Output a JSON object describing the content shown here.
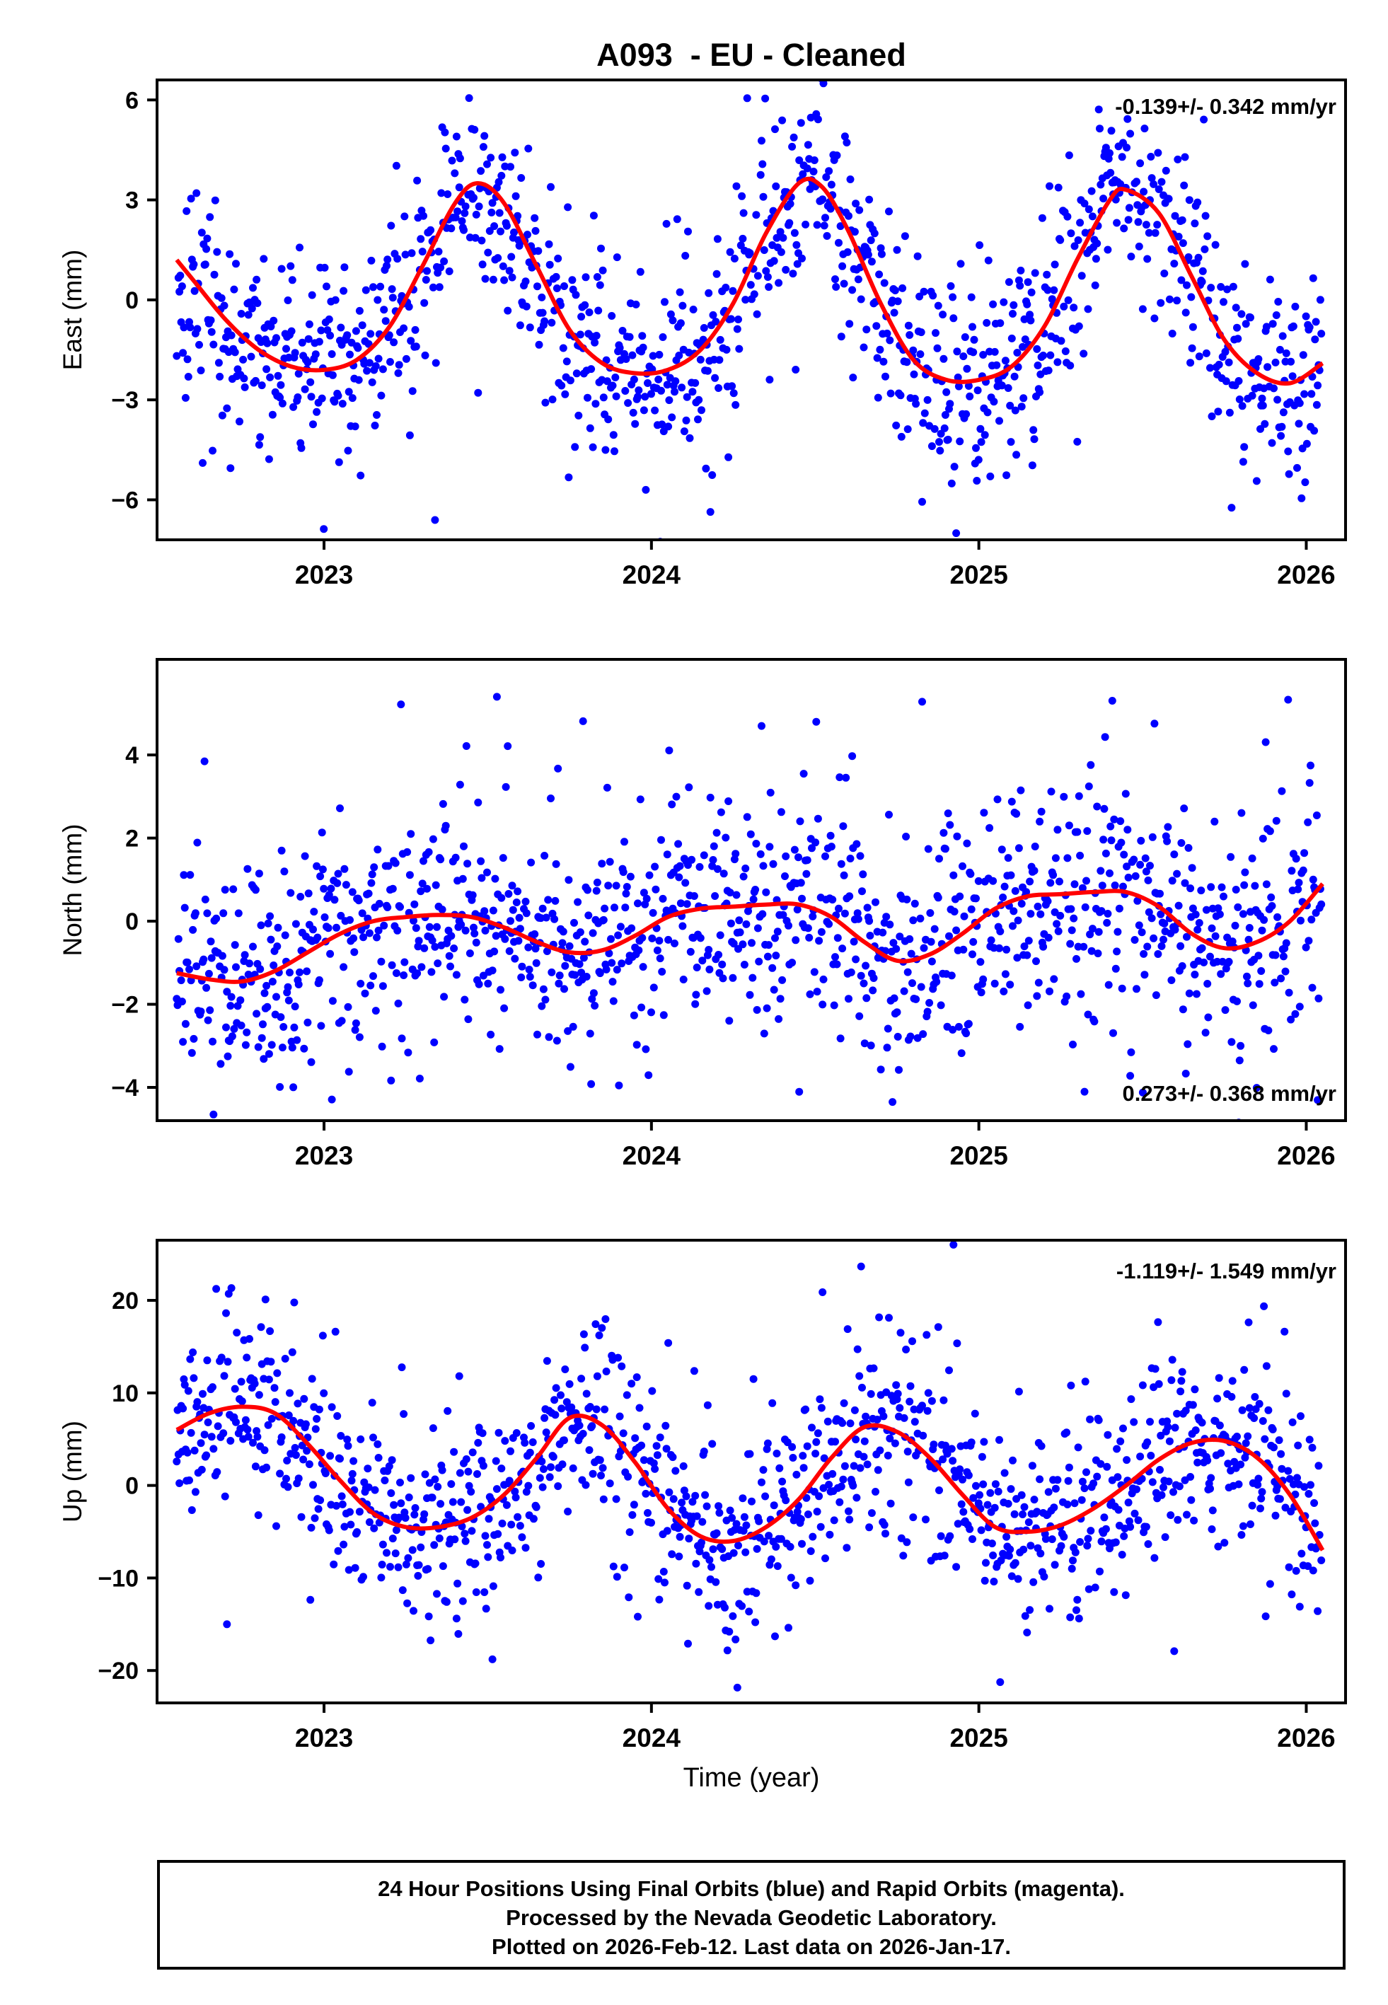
{
  "title": "A093  - EU - Cleaned",
  "chart_data": {
    "type": "scatter",
    "xlabel": "Time (year)",
    "x_ticks": [
      2023,
      2024,
      2025,
      2026
    ],
    "xlim": [
      2022.49,
      2026.12
    ],
    "data_start": 2022.55,
    "data_end": 2026.046,
    "point_color": "#0000ff",
    "curve_color": "#ff0000",
    "frame_color": "#000000",
    "grid": false,
    "legend": "none",
    "scatter_style": {
      "seed": 20260212,
      "gap_frac": 0.05,
      "outlier_frac": 0.12,
      "outlier_scale": 2.2,
      "points_per_year": 365
    },
    "panels": [
      {
        "name": "east",
        "ylabel": "East (mm)",
        "annotation": "-0.139+/- 0.342 mm/yr",
        "annotation_pos": "top-right",
        "ylim": [
          -7.2,
          6.6
        ],
        "yticks": [
          -6,
          -3,
          0,
          3,
          6
        ],
        "noise_sigma": 1.35,
        "curve": [
          [
            2022.55,
            1.2
          ],
          [
            2022.6,
            0.6
          ],
          [
            2022.7,
            -0.6
          ],
          [
            2022.8,
            -1.5
          ],
          [
            2022.9,
            -2.0
          ],
          [
            2023.0,
            -2.1
          ],
          [
            2023.1,
            -1.8
          ],
          [
            2023.2,
            -0.8
          ],
          [
            2023.3,
            1.0
          ],
          [
            2023.4,
            2.9
          ],
          [
            2023.47,
            3.5
          ],
          [
            2023.55,
            2.9
          ],
          [
            2023.65,
            1.0
          ],
          [
            2023.75,
            -0.9
          ],
          [
            2023.85,
            -1.9
          ],
          [
            2023.95,
            -2.2
          ],
          [
            2024.05,
            -2.1
          ],
          [
            2024.15,
            -1.5
          ],
          [
            2024.25,
            -0.1
          ],
          [
            2024.35,
            2.0
          ],
          [
            2024.45,
            3.5
          ],
          [
            2024.52,
            3.4
          ],
          [
            2024.6,
            2.1
          ],
          [
            2024.7,
            -0.1
          ],
          [
            2024.8,
            -1.8
          ],
          [
            2024.9,
            -2.4
          ],
          [
            2025.0,
            -2.4
          ],
          [
            2025.1,
            -2.0
          ],
          [
            2025.2,
            -0.8
          ],
          [
            2025.3,
            1.2
          ],
          [
            2025.4,
            3.0
          ],
          [
            2025.45,
            3.3
          ],
          [
            2025.55,
            2.6
          ],
          [
            2025.65,
            0.7
          ],
          [
            2025.75,
            -1.2
          ],
          [
            2025.85,
            -2.2
          ],
          [
            2025.95,
            -2.5
          ],
          [
            2026.05,
            -1.9
          ]
        ]
      },
      {
        "name": "north",
        "ylabel": "North (mm)",
        "annotation": "0.273+/- 0.368 mm/yr",
        "annotation_pos": "bottom-right",
        "ylim": [
          -4.8,
          6.3
        ],
        "yticks": [
          -4,
          -2,
          0,
          2,
          4
        ],
        "noise_sigma": 1.3,
        "curve": [
          [
            2022.55,
            -1.25
          ],
          [
            2022.65,
            -1.4
          ],
          [
            2022.75,
            -1.45
          ],
          [
            2022.85,
            -1.2
          ],
          [
            2022.95,
            -0.75
          ],
          [
            2023.05,
            -0.3
          ],
          [
            2023.15,
            0.0
          ],
          [
            2023.25,
            0.1
          ],
          [
            2023.35,
            0.15
          ],
          [
            2023.45,
            0.1
          ],
          [
            2023.55,
            -0.15
          ],
          [
            2023.65,
            -0.5
          ],
          [
            2023.75,
            -0.75
          ],
          [
            2023.85,
            -0.7
          ],
          [
            2023.95,
            -0.35
          ],
          [
            2024.05,
            0.1
          ],
          [
            2024.15,
            0.3
          ],
          [
            2024.25,
            0.35
          ],
          [
            2024.35,
            0.4
          ],
          [
            2024.45,
            0.4
          ],
          [
            2024.55,
            0.1
          ],
          [
            2024.65,
            -0.5
          ],
          [
            2024.75,
            -0.95
          ],
          [
            2024.85,
            -0.8
          ],
          [
            2024.95,
            -0.3
          ],
          [
            2025.05,
            0.3
          ],
          [
            2025.15,
            0.6
          ],
          [
            2025.25,
            0.65
          ],
          [
            2025.35,
            0.7
          ],
          [
            2025.45,
            0.7
          ],
          [
            2025.55,
            0.35
          ],
          [
            2025.65,
            -0.3
          ],
          [
            2025.75,
            -0.65
          ],
          [
            2025.85,
            -0.5
          ],
          [
            2025.95,
            0.0
          ],
          [
            2026.05,
            0.9
          ]
        ]
      },
      {
        "name": "up",
        "ylabel": "Up (mm)",
        "annotation": "-1.119+/- 1.549 mm/yr",
        "annotation_pos": "top-right",
        "ylim": [
          -23.5,
          26.5
        ],
        "yticks": [
          -20,
          -10,
          0,
          10,
          20
        ],
        "noise_sigma": 5.0,
        "curve": [
          [
            2022.55,
            6.0
          ],
          [
            2022.65,
            7.8
          ],
          [
            2022.75,
            8.5
          ],
          [
            2022.85,
            7.8
          ],
          [
            2022.95,
            4.5
          ],
          [
            2023.05,
            0.5
          ],
          [
            2023.15,
            -3.0
          ],
          [
            2023.25,
            -4.5
          ],
          [
            2023.35,
            -4.5
          ],
          [
            2023.45,
            -3.5
          ],
          [
            2023.55,
            -1.0
          ],
          [
            2023.65,
            3.0
          ],
          [
            2023.75,
            7.3
          ],
          [
            2023.85,
            6.5
          ],
          [
            2023.95,
            2.5
          ],
          [
            2024.05,
            -2.5
          ],
          [
            2024.15,
            -5.5
          ],
          [
            2024.25,
            -6.0
          ],
          [
            2024.35,
            -4.5
          ],
          [
            2024.45,
            -1.5
          ],
          [
            2024.55,
            3.0
          ],
          [
            2024.65,
            6.3
          ],
          [
            2024.75,
            5.8
          ],
          [
            2024.85,
            3.0
          ],
          [
            2024.95,
            -1.0
          ],
          [
            2025.05,
            -4.5
          ],
          [
            2025.15,
            -5.0
          ],
          [
            2025.25,
            -4.3
          ],
          [
            2025.35,
            -2.5
          ],
          [
            2025.45,
            0.0
          ],
          [
            2025.55,
            2.8
          ],
          [
            2025.65,
            4.6
          ],
          [
            2025.75,
            4.8
          ],
          [
            2025.85,
            3.0
          ],
          [
            2025.95,
            -1.0
          ],
          [
            2026.05,
            -7.0
          ]
        ]
      }
    ]
  },
  "footer": {
    "lines": [
      "24 Hour Positions Using Final Orbits (blue) and Rapid Orbits (magenta).",
      "Processed by the Nevada Geodetic Laboratory.",
      "Plotted on 2026-Feb-12. Last data on 2026-Jan-17."
    ]
  }
}
